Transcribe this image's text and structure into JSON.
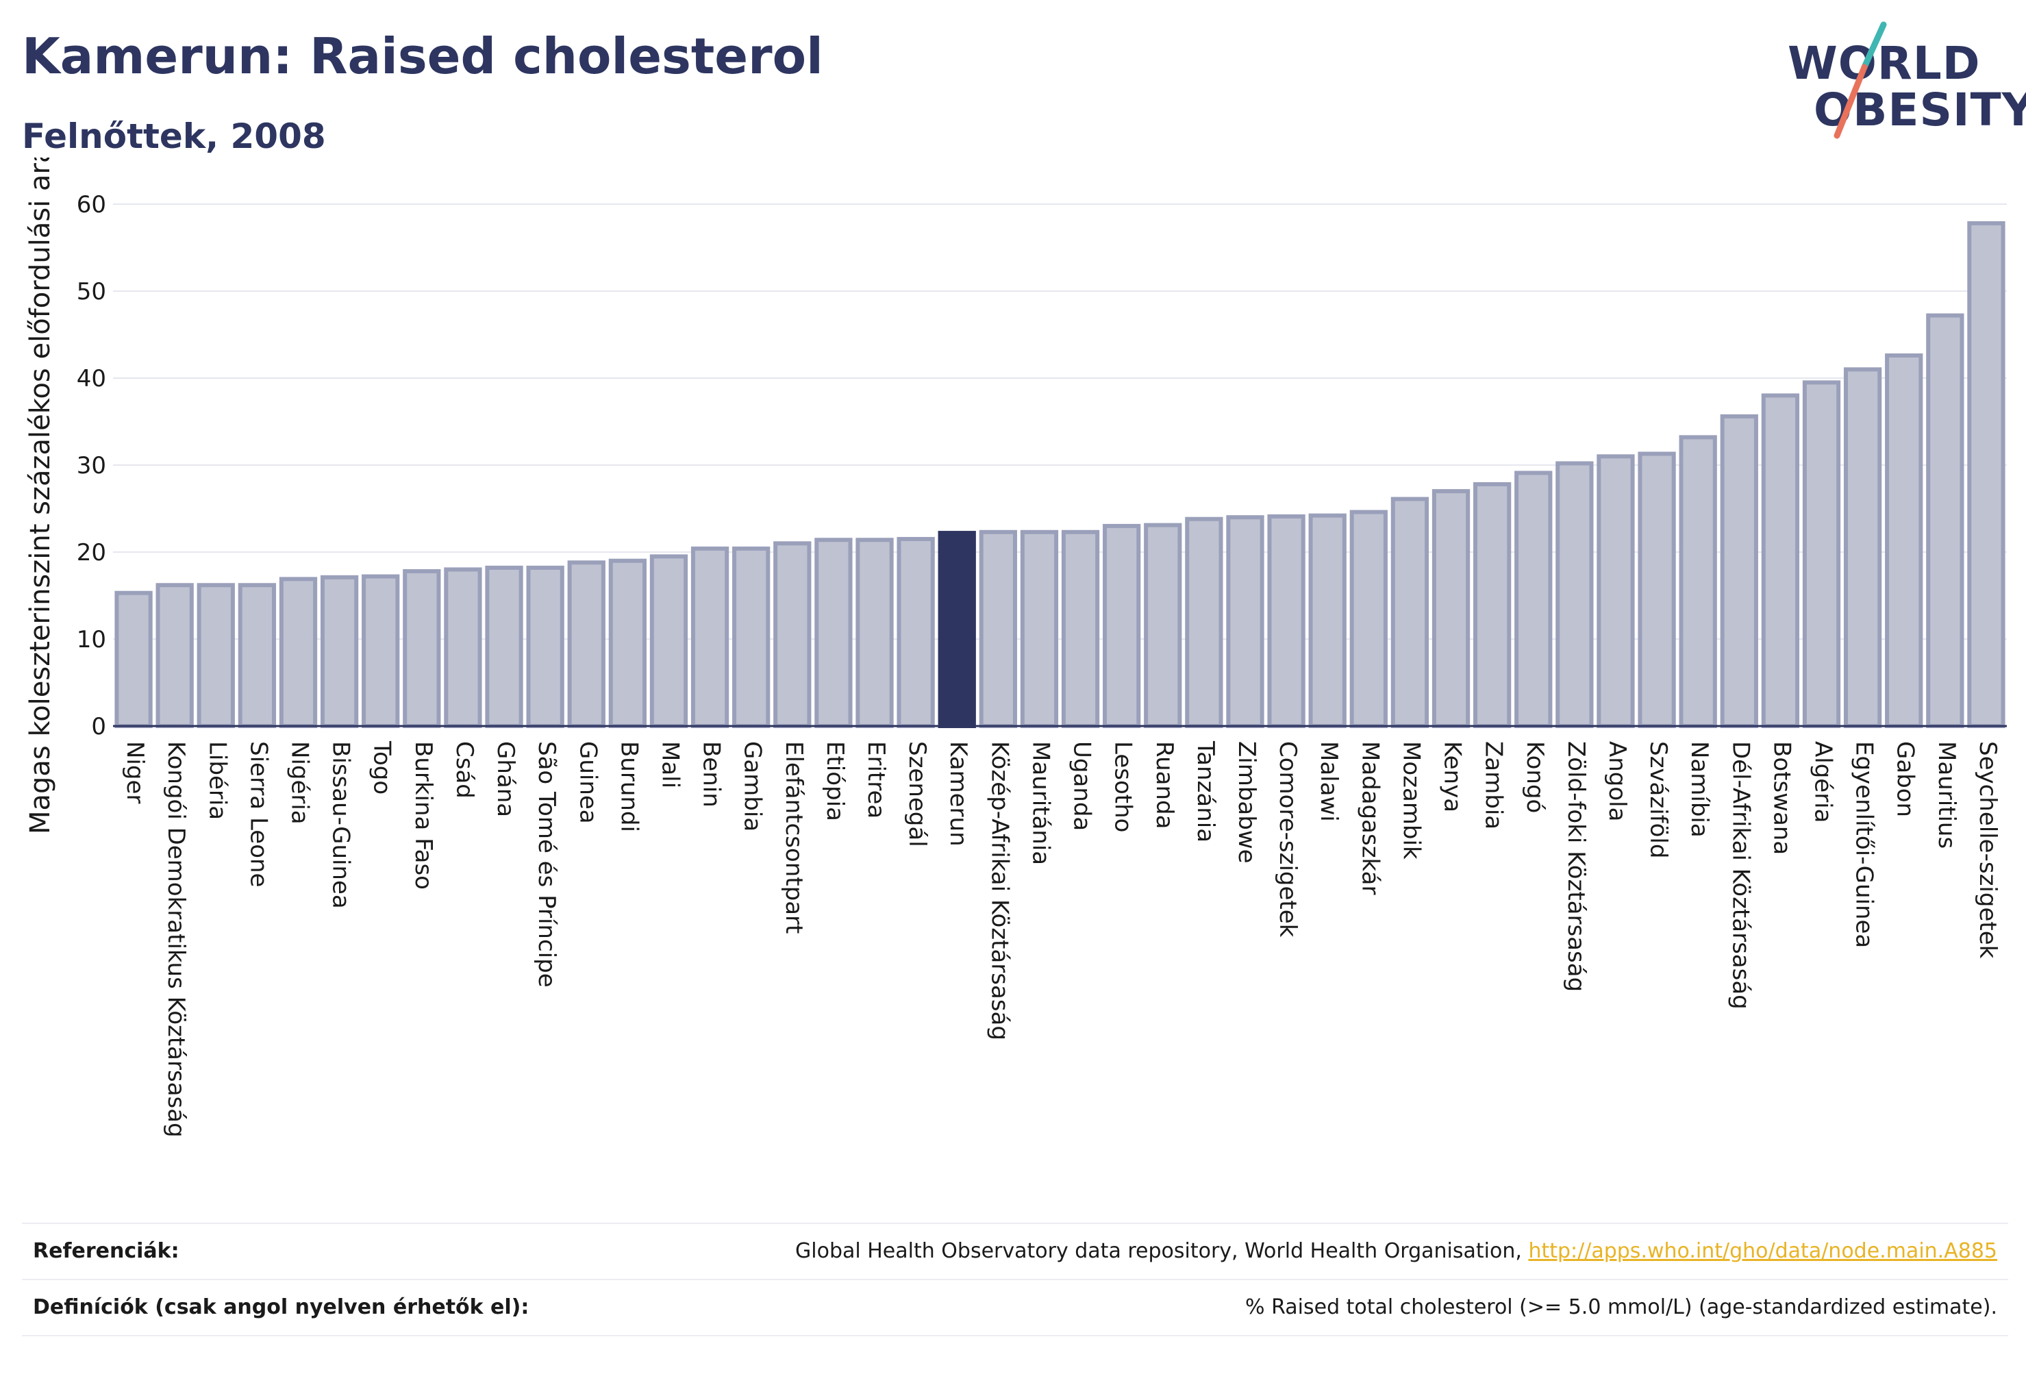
{
  "header": {
    "title": "Kamerun: Raised cholesterol",
    "subtitle": "Felnőttek, 2008"
  },
  "logo": {
    "line1": "WORLD",
    "line2": "OBESITY",
    "slash_color_top": "#3fb6b2",
    "slash_color_bottom": "#e8725c"
  },
  "colors": {
    "bar": "#bfc2d1",
    "bar_stroke": "#9aa0ba",
    "highlight": "#2d3560",
    "text": "#2d3560",
    "link": "#e8b325"
  },
  "chart_data": {
    "type": "bar",
    "ylabel": "Magas koleszterinszint százalékos előfordulási aránya",
    "xlabel": "",
    "ylim": [
      0,
      60
    ],
    "yticks": [
      0,
      10,
      20,
      30,
      40,
      50,
      60
    ],
    "grid": true,
    "highlight": "Kamerun",
    "categories": [
      "Niger",
      "Kongói Demokratikus Köztársaság",
      "Libéria",
      "Sierra Leone",
      "Nigéria",
      "Bissau-Guinea",
      "Togo",
      "Burkina Faso",
      "Csád",
      "Ghána",
      "São Tomé és Príncipe",
      "Guinea",
      "Burundi",
      "Mali",
      "Benin",
      "Gambia",
      "Elefántcsontpart",
      "Etiópia",
      "Eritrea",
      "Szenegál",
      "Kamerun",
      "Közép-Afrikai Köztársaság",
      "Mauritánia",
      "Uganda",
      "Lesotho",
      "Ruanda",
      "Tanzánia",
      "Zimbabwe",
      "Comore-szigetek",
      "Malawi",
      "Madagaszkár",
      "Mozambik",
      "Kenya",
      "Zambia",
      "Kongó",
      "Zöld-foki Köztársaság",
      "Angola",
      "Szváziföld",
      "Namíbia",
      "Dél-Afrikai Köztársaság",
      "Botswana",
      "Algéria",
      "Egyenlítői-Guinea",
      "Gabon",
      "Mauritius",
      "Seychelle-szigetek"
    ],
    "values": [
      15.3,
      16.2,
      16.2,
      16.2,
      16.9,
      17.1,
      17.2,
      17.8,
      18.0,
      18.2,
      18.2,
      18.8,
      19.0,
      19.5,
      20.4,
      20.4,
      21.0,
      21.4,
      21.4,
      21.5,
      22.2,
      22.3,
      22.3,
      22.3,
      23.0,
      23.1,
      23.8,
      24.0,
      24.1,
      24.2,
      24.6,
      26.1,
      27.0,
      27.8,
      29.1,
      30.2,
      31.0,
      31.3,
      33.2,
      35.6,
      38.0,
      39.5,
      41.0,
      42.6,
      47.2,
      57.8
    ]
  },
  "footer": {
    "references_label": "Referenciák:",
    "references_text": "Global Health Observatory data repository, World Health Organisation, ",
    "references_link": "http://apps.who.int/gho/data/node.main.A885",
    "definitions_label": "Definíciók (csak angol nyelven érhetők el):",
    "definitions_text": "% Raised total cholesterol (>= 5.0 mmol/L) (age-standardized estimate)."
  }
}
